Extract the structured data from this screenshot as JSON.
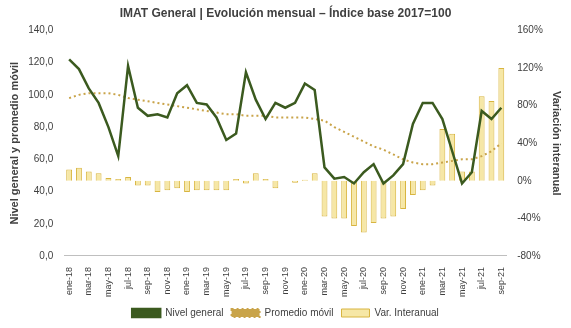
{
  "chart_data": {
    "type": "bar",
    "title": "IMAT General | Evolución mensual – Índice base 2017=100",
    "y_label": "Nivel general y promedio móvil",
    "y2_label": "Variación interanual",
    "categories": [
      "ene-18",
      null,
      "mar-18",
      null,
      "may-18",
      null,
      "jul-18",
      null,
      "sep-18",
      null,
      "nov-18",
      null,
      "ene-19",
      null,
      "mar-19",
      null,
      "may-19",
      null,
      "jul-19",
      null,
      "sep-19",
      null,
      "nov-19",
      null,
      "ene-20",
      null,
      "mar-20",
      null,
      "may-20",
      null,
      "jul-20",
      null,
      "sep-20",
      null,
      "nov-20",
      null,
      "ene-21",
      null,
      "mar-21",
      null,
      "may-21",
      null,
      "jul-21",
      null,
      "sep-21"
    ],
    "series": [
      {
        "name": "Var. Interanual",
        "type": "bar",
        "axis": "y2",
        "color": "#f6e7a6",
        "values": [
          12,
          14,
          10,
          8,
          3,
          2,
          4,
          -5,
          -5,
          -12,
          -10,
          -8,
          -12,
          -10,
          -10,
          -10,
          -10,
          2,
          -3,
          8,
          2,
          -8,
          0,
          -2,
          1,
          8,
          -38,
          -40,
          -40,
          -48,
          -55,
          -45,
          -40,
          -38,
          -30,
          -15,
          -10,
          -5,
          55,
          50,
          10,
          10,
          90,
          85,
          120
        ]
      },
      {
        "name": "Nivel general",
        "type": "line",
        "line_style": "solid",
        "color": "#3b5a1f",
        "values": [
          122,
          116,
          104,
          95,
          80,
          62,
          118,
          92,
          87,
          88,
          86,
          101,
          106,
          95,
          94,
          86,
          72,
          76,
          114,
          97,
          85,
          95,
          92,
          95,
          107,
          103,
          55,
          48,
          49,
          45,
          52,
          57,
          45,
          50,
          57,
          82,
          95,
          95,
          85,
          65,
          45,
          52,
          90,
          85,
          92
        ]
      },
      {
        "name": "Promedio móvil",
        "type": "line",
        "line_style": "dotted",
        "color": "#c9a44a",
        "values": [
          98,
          100,
          101,
          101,
          101,
          100,
          98,
          97,
          96,
          95,
          94,
          93,
          92,
          91,
          90,
          89,
          88,
          88,
          87,
          87,
          87,
          86,
          86,
          86,
          86,
          85,
          84,
          80,
          77,
          74,
          71,
          68,
          66,
          63,
          60,
          58,
          57,
          57,
          58,
          59,
          60,
          60,
          62,
          65,
          70
        ]
      }
    ],
    "ylim": [
      0,
      140
    ],
    "yticks": [
      {
        "value": 0,
        "label": "0,0"
      },
      {
        "value": 20,
        "label": "20,0"
      },
      {
        "value": 40,
        "label": "40,0"
      },
      {
        "value": 60,
        "label": "60,0"
      },
      {
        "value": 80,
        "label": "80,0"
      },
      {
        "value": 100,
        "label": "100,0"
      },
      {
        "value": 120,
        "label": "120,0"
      },
      {
        "value": 140,
        "label": "140,0"
      }
    ],
    "y2lim": [
      -80,
      160
    ],
    "y2ticks": [
      {
        "value": -80,
        "label": "-80%"
      },
      {
        "value": -40,
        "label": "-40%"
      },
      {
        "value": 0,
        "label": "0%"
      },
      {
        "value": 40,
        "label": "40%"
      },
      {
        "value": 80,
        "label": "80%"
      },
      {
        "value": 120,
        "label": "120%"
      },
      {
        "value": 160,
        "label": "160%"
      }
    ],
    "grid": false,
    "legend": "bottom"
  }
}
